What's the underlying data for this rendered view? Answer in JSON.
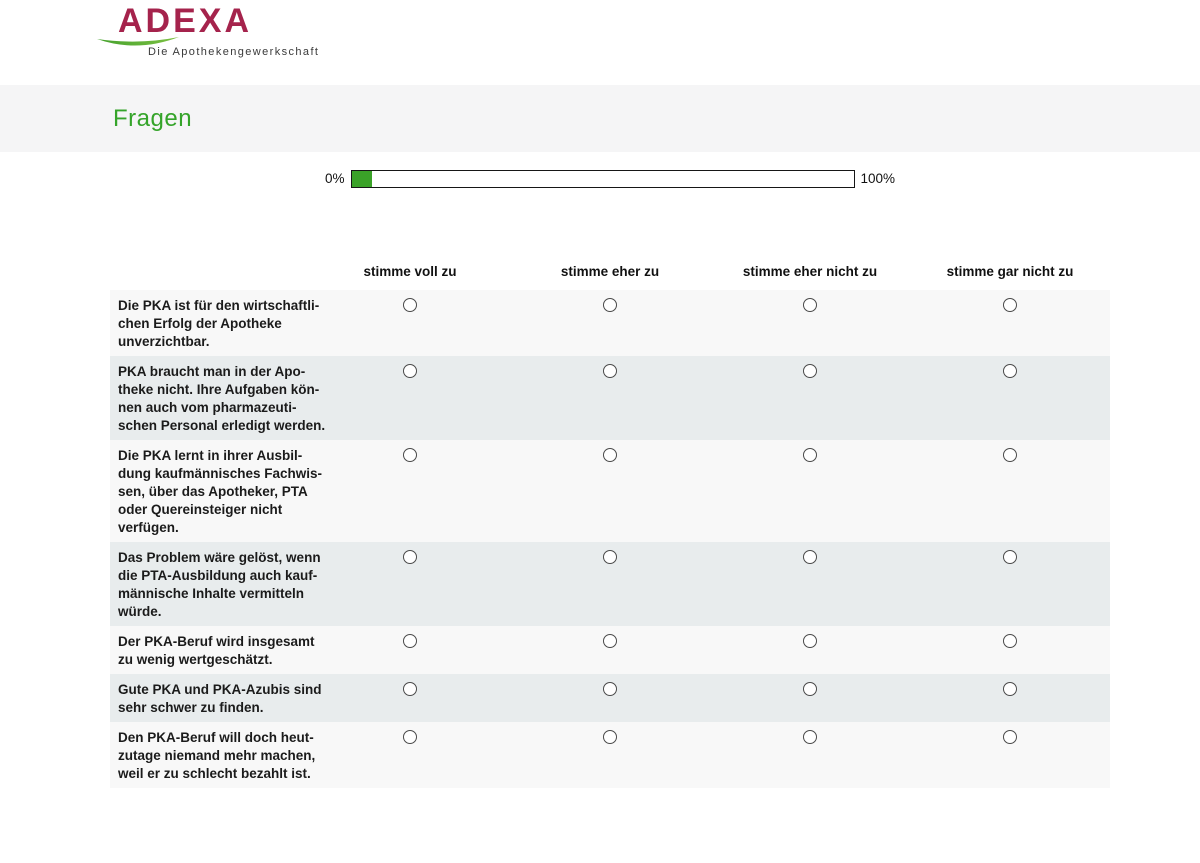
{
  "brand": {
    "logo_text": "ADEXA",
    "tagline": "Die Apothekengewerkschaft",
    "logo_color": "#a5234c",
    "swoosh_color_left": "#45a12d",
    "swoosh_color_right": "#7cc142"
  },
  "page": {
    "title": "Fragen",
    "title_color": "#35a42a",
    "band_color": "#f5f5f6"
  },
  "progress": {
    "left_label": "0%",
    "right_label": "100%",
    "percent": 4,
    "fill_color": "#3aa228"
  },
  "survey": {
    "columns": [
      "stimme voll zu",
      "stimme eher zu",
      "stimme eher nicht zu",
      "stimme gar nicht zu"
    ],
    "row_colors": {
      "light": "#f8f8f8",
      "dark": "#e8eced"
    },
    "rows": [
      {
        "text": "Die PKA ist für den wirtschaftli-\nchen Erfolg der Apotheke\nunverzichtbar."
      },
      {
        "text": "PKA braucht man in der Apo-\ntheke nicht. Ihre Aufgaben kön-\nnen auch vom pharmazeuti-\nschen Personal erledigt werden."
      },
      {
        "text": "Die PKA lernt in ihrer Ausbil-\ndung kaufmännisches Fachwis-\nsen, über das Apotheker, PTA\noder Quereinsteiger nicht\nverfügen."
      },
      {
        "text": "Das Problem wäre gelöst, wenn\ndie PTA-Ausbildung auch kauf-\nmännische Inhalte vermitteln\nwürde."
      },
      {
        "text": "Der PKA-Beruf wird insgesamt\nzu wenig wertgeschätzt."
      },
      {
        "text": "Gute PKA und PKA-Azubis sind\nsehr schwer zu finden."
      },
      {
        "text": "Den PKA-Beruf will doch heut-\nzutage niemand mehr machen,\nweil er zu schlecht bezahlt ist."
      }
    ]
  }
}
